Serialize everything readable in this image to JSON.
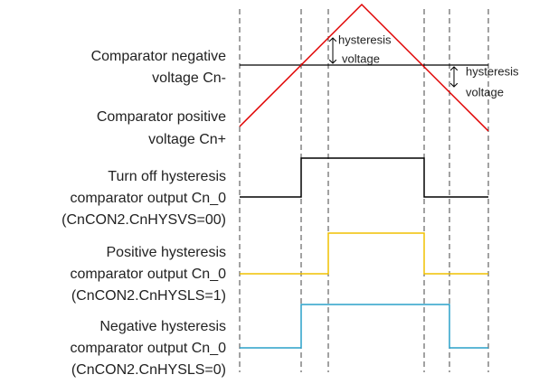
{
  "signals": [
    {
      "lines": [
        "Comparator negative",
        "voltage Cn-"
      ]
    },
    {
      "lines": [
        "Comparator positive",
        "voltage Cn+"
      ]
    },
    {
      "lines": [
        "Turn off hysteresis",
        "comparator output Cn_0",
        "(CnCON2.CnHYSVS=00)"
      ]
    },
    {
      "lines": [
        "Positive hysteresis",
        "comparator output Cn_0",
        "(CnCON2.CnHYSLS=1)"
      ]
    },
    {
      "lines": [
        "Negative hysteresis",
        "comparator output Cn_0",
        "(CnCON2.CnHYSLS=0)"
      ]
    }
  ],
  "annotations": [
    {
      "lines": [
        "hysteresis",
        "voltage"
      ]
    },
    {
      "lines": [
        "hysteresis",
        "voltage"
      ]
    }
  ]
}
